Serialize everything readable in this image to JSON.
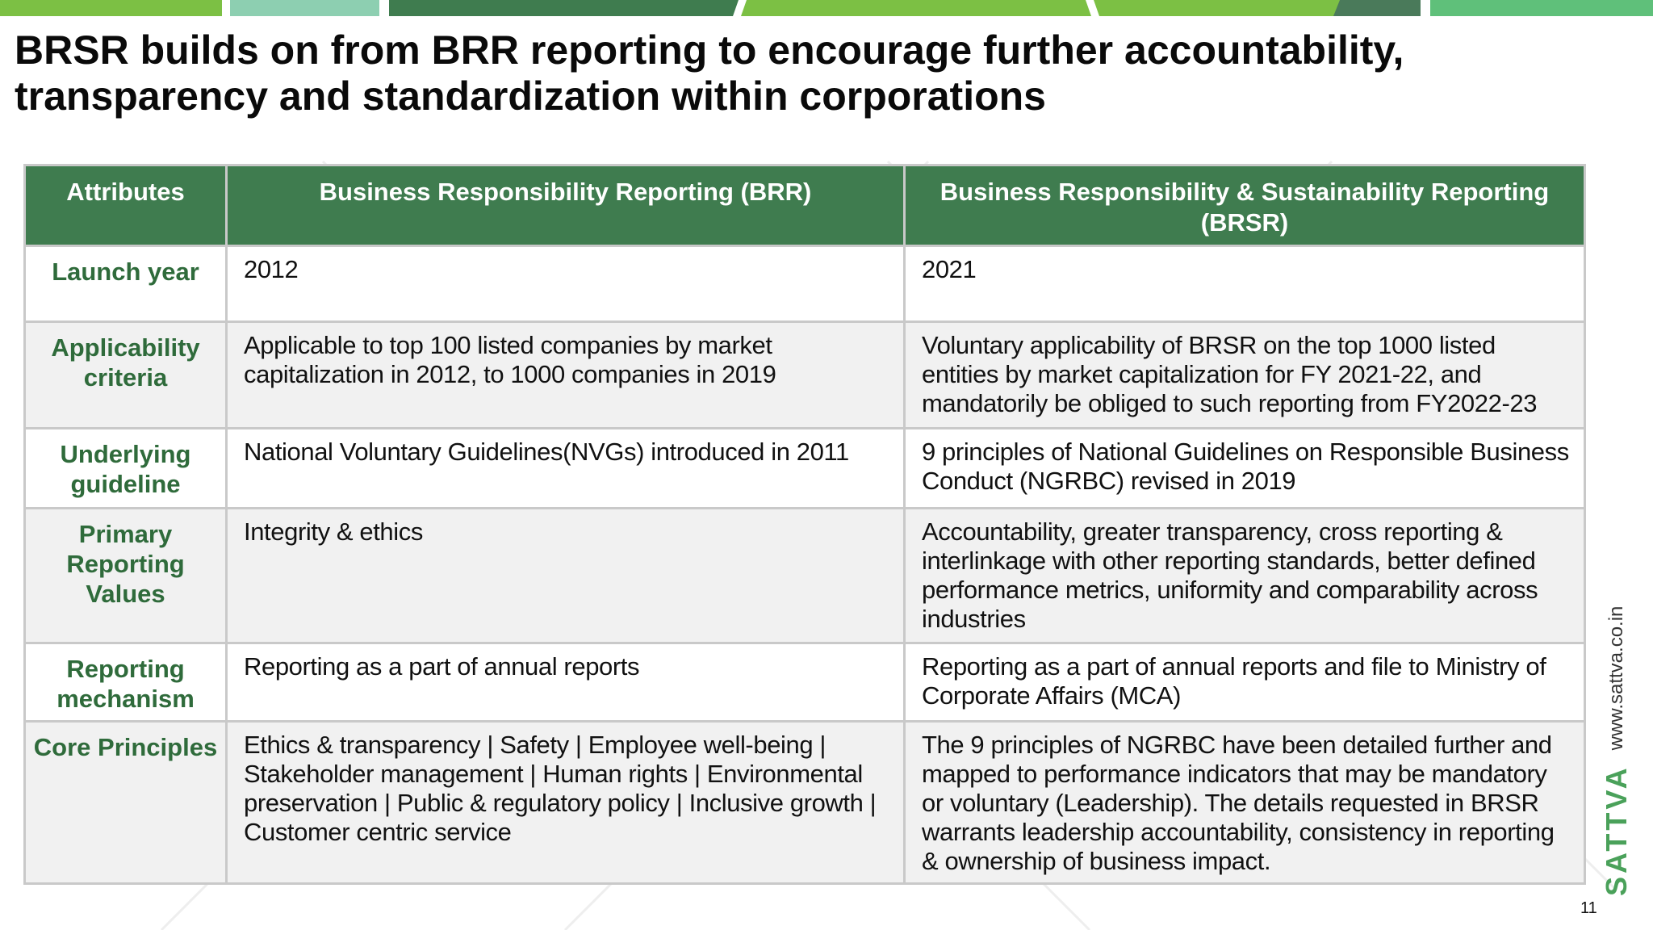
{
  "slide": {
    "title": "BRSR builds on from BRR reporting to encourage further accountability, transparency and standardization within corporations",
    "page_number": "11"
  },
  "colors": {
    "header_green": "#3f7c4f",
    "attribute_green": "#2f6b3b",
    "band_colors": [
      "#7cc044",
      "#8dcfb1",
      "#3f7c4f",
      "#7cc044",
      "#4a7a5a",
      "#5fc07a"
    ]
  },
  "table": {
    "headers": [
      "Attributes",
      "Business Responsibility Reporting (BRR)",
      "Business Responsibility & Sustainability Reporting (BRSR)"
    ],
    "rows": [
      {
        "attribute": "Launch year",
        "brr": "2012",
        "brsr": "2021"
      },
      {
        "attribute": "Applicability criteria",
        "brr": "Applicable to top 100 listed companies by market capitalization in 2012, to 1000 companies in 2019",
        "brsr": "Voluntary applicability of BRSR on the top 1000 listed entities by market capitalization for FY 2021-22, and mandatorily be obliged to such reporting from FY2022-23"
      },
      {
        "attribute": "Underlying guideline",
        "brr": "National Voluntary Guidelines(NVGs) introduced in 2011",
        "brsr": "9 principles of National Guidelines on Responsible Business Conduct (NGRBC) revised in 2019"
      },
      {
        "attribute": "Primary Reporting Values",
        "brr": "Integrity & ethics",
        "brsr": "Accountability, greater transparency, cross reporting & interlinkage with other reporting standards, better defined performance metrics, uniformity and comparability across industries"
      },
      {
        "attribute": "Reporting mechanism",
        "brr": "Reporting as a part of annual reports",
        "brsr": "Reporting as a part of annual reports and file to Ministry of Corporate Affairs (MCA)"
      },
      {
        "attribute": "Core Principles",
        "brr": "Ethics & transparency | Safety | Employee well-being | Stakeholder management | Human rights | Environmental preservation | Public & regulatory policy | Inclusive growth | Customer centric service",
        "brsr": "The 9 principles of NGRBC have been detailed further and mapped to performance indicators that may be mandatory or voluntary (Leadership). The details requested in BRSR warrants leadership accountability, consistency in reporting & ownership of business impact."
      }
    ]
  },
  "branding": {
    "logo_text": "SATTVA",
    "url": "www.sattva.co.in"
  }
}
